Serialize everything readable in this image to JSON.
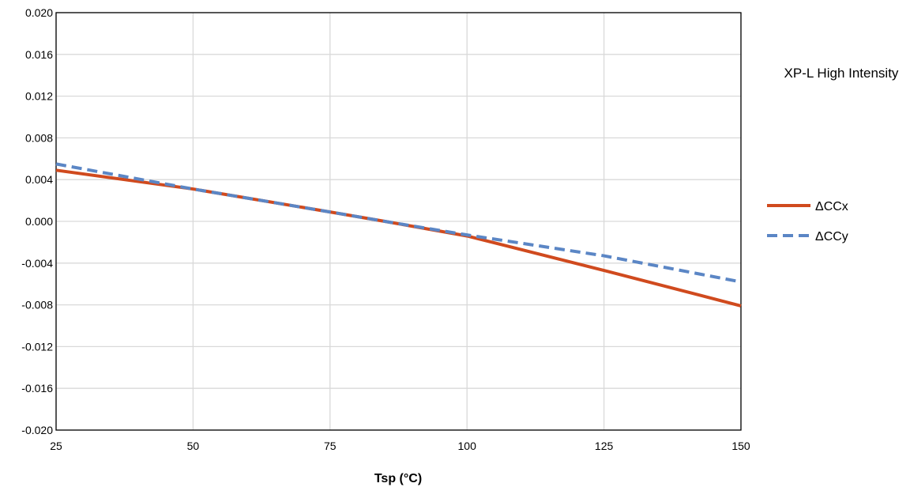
{
  "chart_data": {
    "type": "line",
    "title": "XP-L High Intensity",
    "xlabel": "Tsp (°C)",
    "ylabel": "",
    "xlim": [
      25,
      150
    ],
    "ylim": [
      -0.02,
      0.02
    ],
    "xticks": [
      25,
      50,
      75,
      100,
      125,
      150
    ],
    "xtick_labels": [
      "25",
      "50",
      "75",
      "100",
      "125",
      "150"
    ],
    "yticks": [
      -0.02,
      -0.016,
      -0.012,
      -0.008,
      -0.004,
      0.0,
      0.004,
      0.008,
      0.012,
      0.016,
      0.02
    ],
    "ytick_labels": [
      "-0.020",
      "-0.016",
      "-0.012",
      "-0.008",
      "-0.004",
      "0.000",
      "0.004",
      "0.008",
      "0.012",
      "0.016",
      "0.020"
    ],
    "grid": true,
    "legend_position": "right",
    "series": [
      {
        "name": "ΔCCx",
        "color": "#D04A1E",
        "style": "solid",
        "x": [
          25,
          50,
          75,
          85,
          100,
          125,
          150
        ],
        "y": [
          0.0049,
          0.0031,
          0.0009,
          0.0,
          -0.0014,
          -0.0047,
          -0.0081
        ]
      },
      {
        "name": "ΔCCy",
        "color": "#5B86C5",
        "style": "dashed",
        "x": [
          25,
          50,
          75,
          85,
          100,
          125,
          150
        ],
        "y": [
          0.0055,
          0.0031,
          0.0009,
          0.0,
          -0.0013,
          -0.0033,
          -0.0058
        ]
      }
    ]
  }
}
